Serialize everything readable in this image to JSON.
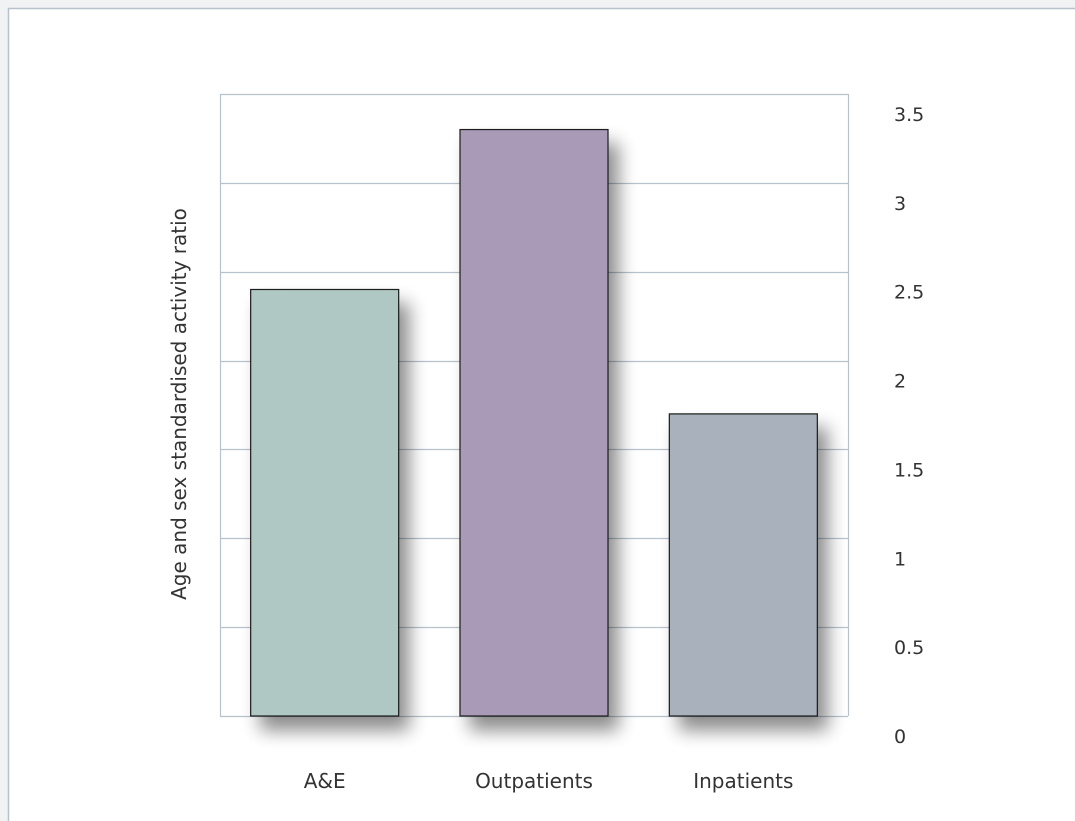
{
  "chart_data": {
    "type": "bar",
    "categories": [
      "A&E",
      "Outpatients",
      "Inpatients"
    ],
    "values": [
      2.4,
      3.3,
      1.7
    ],
    "ylabel": "Age and sex standardised activity ratio",
    "xlabel": "",
    "ylim": [
      0,
      3.5
    ],
    "y_ticks": [
      "0",
      "0.5",
      "1",
      "1.5",
      "2",
      "2.5",
      "3",
      "3.5"
    ],
    "y_axis_side": "right",
    "grid": true,
    "bar_colors": [
      "#afc8c3",
      "#a99bb7",
      "#a9b2bc"
    ],
    "gridline_color": "#b8c2cc",
    "frame_color": "#b8c2cc"
  }
}
